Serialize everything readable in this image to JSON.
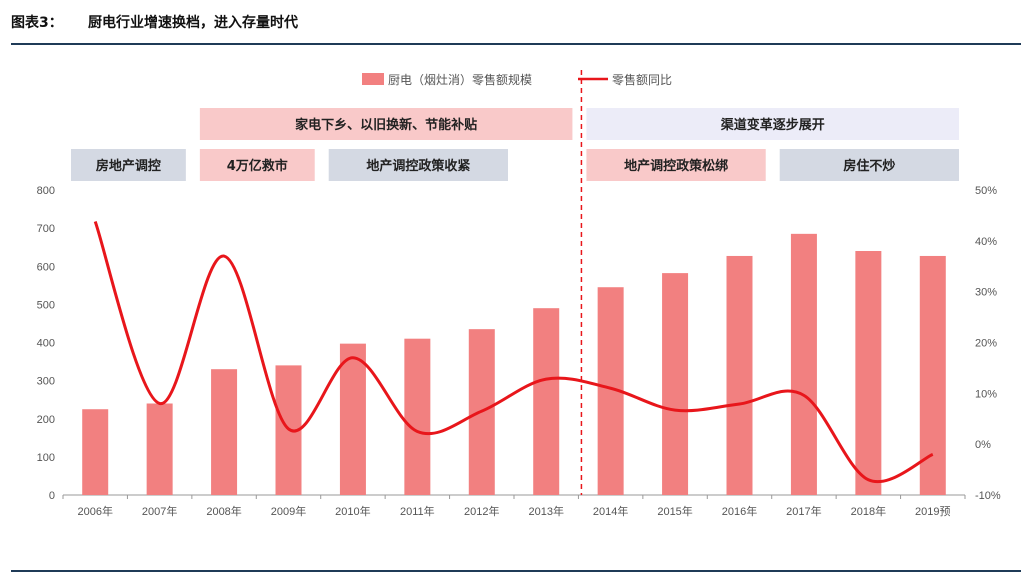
{
  "header": {
    "figure_label": "图表3：",
    "title": "厨电行业增速换档，进入存量时代"
  },
  "colors": {
    "bar": "#f28080",
    "line": "#e8161b",
    "band_pink": "#f9c9c9",
    "band_lilac": "#ececf8",
    "band_gray": "#d4d9e3",
    "rule": "#1f3b57"
  },
  "annotations": {
    "top": [
      {
        "label": "家电下乡、以旧换新、节能补贴",
        "from": "2008年",
        "to": "2013年",
        "style": "pink"
      },
      {
        "label": "渠道变革逐步展开",
        "from": "2014年",
        "to": "2019预",
        "style": "lilac"
      }
    ],
    "bottom": [
      {
        "label": "房地产调控",
        "from": "2006年",
        "to": "2007年",
        "style": "gray"
      },
      {
        "label": "4万亿救市",
        "from": "2008年",
        "to": "2009年",
        "style": "pink"
      },
      {
        "label": "地产调控政策收紧",
        "from": "2010年",
        "to": "2012年",
        "style": "gray"
      },
      {
        "label": "地产调控政策松绑",
        "from": "2014年",
        "to": "2016年",
        "style": "pink"
      },
      {
        "label": "房住不炒",
        "from": "2017年",
        "to": "2019预",
        "style": "gray"
      }
    ],
    "divider_between": [
      "2013年",
      "2014年"
    ]
  },
  "chart_data": {
    "type": "bar",
    "categories": [
      "2006年",
      "2007年",
      "2008年",
      "2009年",
      "2010年",
      "2011年",
      "2012年",
      "2013年",
      "2014年",
      "2015年",
      "2016年",
      "2017年",
      "2018年",
      "2019预"
    ],
    "series": [
      {
        "name": "厨电（烟灶消）零售额规模",
        "type": "bar",
        "axis": "left",
        "values": [
          225,
          240,
          330,
          340,
          397,
          410,
          435,
          490,
          545,
          582,
          627,
          685,
          640,
          627
        ]
      },
      {
        "name": "零售额同比",
        "type": "line",
        "axis": "right",
        "values": [
          43.8,
          8.0,
          37.0,
          3.0,
          17.0,
          2.5,
          6.5,
          12.8,
          11.0,
          6.7,
          7.9,
          9.6,
          -7.0,
          -2.0
        ]
      }
    ],
    "y_left": {
      "min": 0,
      "max": 800,
      "ticks": [
        "0",
        "100",
        "200",
        "300",
        "400",
        "500",
        "600",
        "700",
        "800"
      ]
    },
    "y_right": {
      "min": -10,
      "max": 50,
      "ticks": [
        "-10%",
        "0%",
        "10%",
        "20%",
        "30%",
        "40%",
        "50%"
      ]
    },
    "legend": "top-center",
    "grid": false
  }
}
